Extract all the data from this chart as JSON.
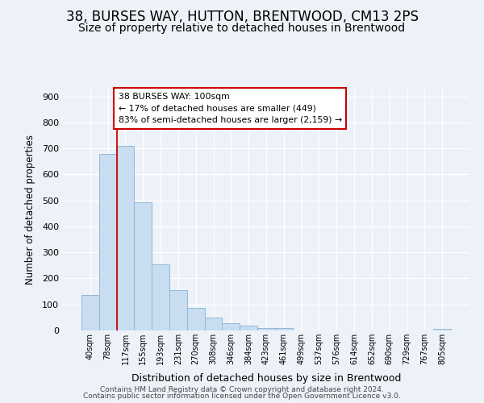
{
  "title1": "38, BURSES WAY, HUTTON, BRENTWOOD, CM13 2PS",
  "title2": "Size of property relative to detached houses in Brentwood",
  "xlabel": "Distribution of detached houses by size in Brentwood",
  "ylabel": "Number of detached properties",
  "categories": [
    "40sqm",
    "78sqm",
    "117sqm",
    "155sqm",
    "193sqm",
    "231sqm",
    "270sqm",
    "308sqm",
    "346sqm",
    "384sqm",
    "423sqm",
    "461sqm",
    "499sqm",
    "537sqm",
    "576sqm",
    "614sqm",
    "652sqm",
    "690sqm",
    "729sqm",
    "767sqm",
    "805sqm"
  ],
  "values": [
    137,
    680,
    710,
    492,
    253,
    155,
    87,
    50,
    29,
    20,
    10,
    10,
    0,
    0,
    0,
    0,
    0,
    0,
    0,
    0,
    7
  ],
  "bar_color": "#c8ddf0",
  "bar_edge_color": "#92b8d8",
  "vline_color": "#cc0000",
  "vline_x_index": 2,
  "annotation_text": "38 BURSES WAY: 100sqm\n← 17% of detached houses are smaller (449)\n83% of semi-detached houses are larger (2,159) →",
  "annotation_box_facecolor": "#ffffff",
  "annotation_box_edgecolor": "#cc0000",
  "ylim": [
    0,
    930
  ],
  "yticks": [
    0,
    100,
    200,
    300,
    400,
    500,
    600,
    700,
    800,
    900
  ],
  "footer1": "Contains HM Land Registry data © Crown copyright and database right 2024.",
  "footer2": "Contains public sector information licensed under the Open Government Licence v3.0.",
  "bg_color": "#edf2f9",
  "title1_fontsize": 12,
  "title2_fontsize": 10
}
